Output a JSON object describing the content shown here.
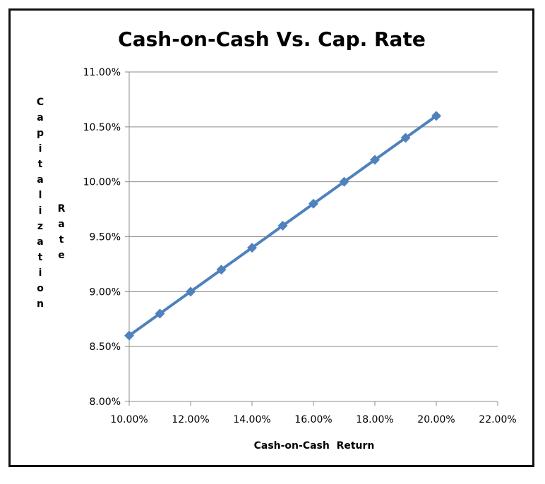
{
  "chart_data": {
    "type": "line",
    "title": "Cash-on-Cash Vs. Cap. Rate",
    "xlabel": "Cash-on-Cash  Return",
    "ylabel_words": [
      "Capitalization",
      "Rate"
    ],
    "x": [
      10,
      11,
      12,
      13,
      14,
      15,
      16,
      17,
      18,
      19,
      20
    ],
    "series": [
      {
        "values": [
          8.6,
          8.8,
          9.0,
          9.2,
          9.4,
          9.6,
          9.8,
          10.0,
          10.2,
          10.4,
          10.6
        ],
        "color": "#4f81bd",
        "marker": "diamond"
      }
    ],
    "xlim": [
      10,
      22
    ],
    "ylim": [
      8,
      11
    ],
    "xticks": [
      10,
      12,
      14,
      16,
      18,
      20,
      22
    ],
    "yticks": [
      8.0,
      8.5,
      9.0,
      9.5,
      10.0,
      10.5,
      11.0
    ],
    "xtick_labels": [
      "10.00%",
      "12.00%",
      "14.00%",
      "16.00%",
      "18.00%",
      "20.00%",
      "22.00%"
    ],
    "ytick_labels": [
      "8.00%",
      "8.50%",
      "9.00%",
      "9.50%",
      "10.00%",
      "10.50%",
      "11.00%"
    ],
    "grid": "horizontal",
    "legend": "none"
  }
}
